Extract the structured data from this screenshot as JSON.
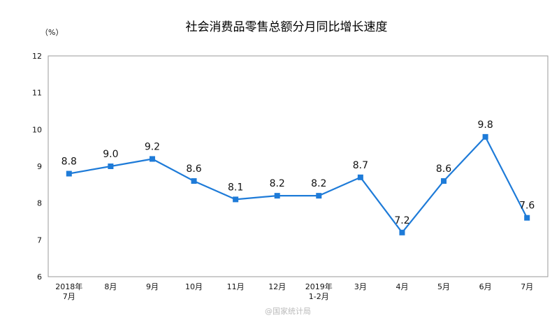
{
  "chart_data": {
    "type": "line",
    "title": "社会消费品零售总额分月同比增长速度",
    "unit_label": "（%）",
    "categories": [
      [
        "2018年",
        "7月"
      ],
      [
        "8月"
      ],
      [
        "9月"
      ],
      [
        "10月"
      ],
      [
        "11月"
      ],
      [
        "12月"
      ],
      [
        "2019年",
        "1-2月"
      ],
      [
        "3月"
      ],
      [
        "4月"
      ],
      [
        "5月"
      ],
      [
        "6月"
      ],
      [
        "7月"
      ]
    ],
    "values": [
      8.8,
      9.0,
      9.2,
      8.6,
      8.1,
      8.2,
      8.2,
      8.7,
      7.2,
      8.6,
      9.8,
      7.6
    ],
    "value_labels": [
      "8.8",
      "9.0",
      "9.2",
      "8.6",
      "8.1",
      "8.2",
      "8.2",
      "8.7",
      "7.2",
      "8.6",
      "9.8",
      "7.6"
    ],
    "ylim": [
      6,
      12
    ],
    "yticks": [
      6,
      7,
      8,
      9,
      10,
      11,
      12
    ],
    "grid": false,
    "legend": "none",
    "line_color": "#1e7bd8",
    "frame_color": "#999999"
  },
  "watermark": "@国家统计局"
}
